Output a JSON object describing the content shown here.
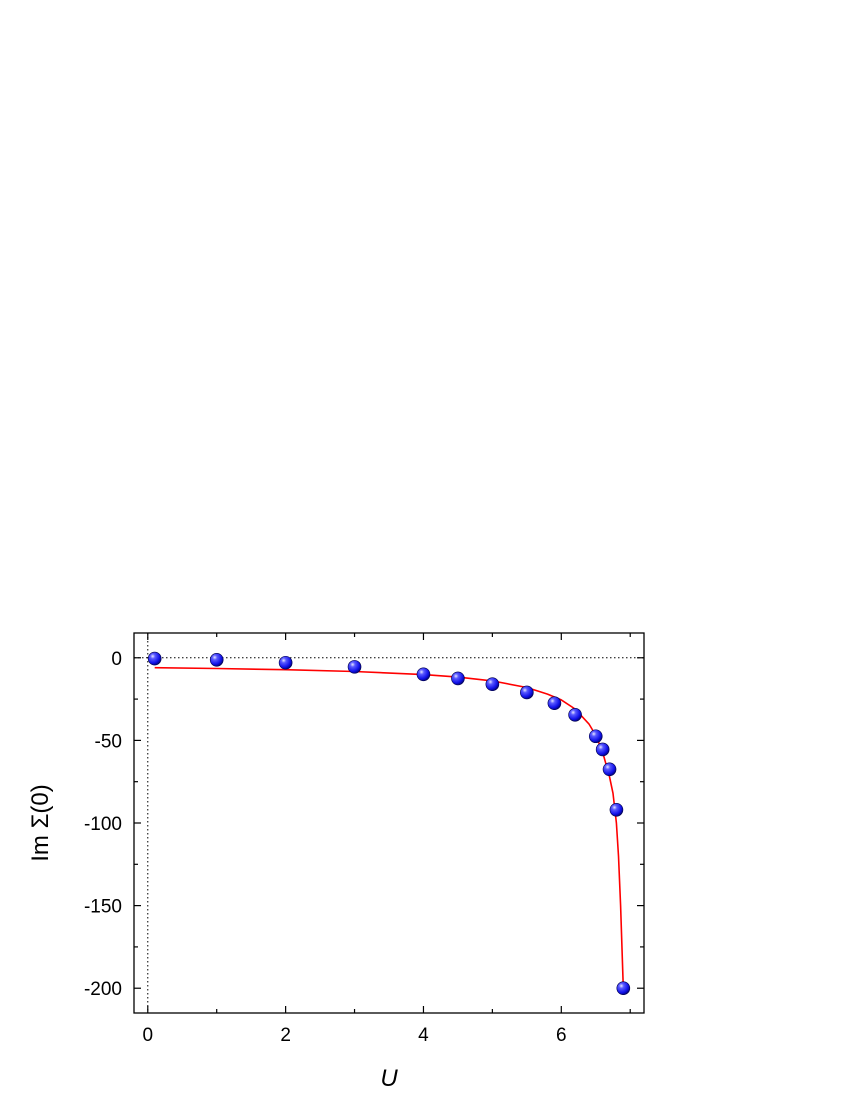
{
  "chart_data": {
    "type": "scatter",
    "xlabel": "U",
    "ylabel": "Im Σ(0)",
    "xlim": [
      -0.2,
      7.2
    ],
    "ylim": [
      -215,
      15
    ],
    "x_ticks": [
      0,
      2,
      4,
      6
    ],
    "y_ticks": [
      0,
      -50,
      -100,
      -150,
      -200
    ],
    "reference_lines": {
      "x": 0,
      "y": 0
    },
    "grid": false,
    "colors": {
      "points": "#1a1aff",
      "fit": "#ff0000"
    },
    "series": [
      {
        "kind": "points",
        "x": [
          0.1,
          1.0,
          2.0,
          3.0,
          4.0,
          4.5,
          5.0,
          5.5,
          5.9,
          6.2,
          6.5,
          6.6,
          6.7,
          6.8,
          6.9
        ],
        "y": [
          -0.5,
          -1.2,
          -3.0,
          -5.5,
          -10,
          -12.5,
          -16,
          -21,
          -27.5,
          -34.5,
          -47.5,
          -55.5,
          -67.5,
          -92,
          -200
        ]
      },
      {
        "kind": "line",
        "x": [
          0.1,
          1.0,
          2.0,
          3.0,
          4.0,
          4.5,
          5.0,
          5.5,
          5.8,
          6.0,
          6.2,
          6.4,
          6.5,
          6.6,
          6.7,
          6.75,
          6.8,
          6.83,
          6.86,
          6.9
        ],
        "y": [
          -6,
          -6.5,
          -7.2,
          -8.3,
          -10.2,
          -11.7,
          -14,
          -18,
          -22,
          -25.5,
          -31,
          -40,
          -47,
          -57,
          -72,
          -82,
          -100,
          -120,
          -150,
          -200
        ]
      }
    ]
  }
}
